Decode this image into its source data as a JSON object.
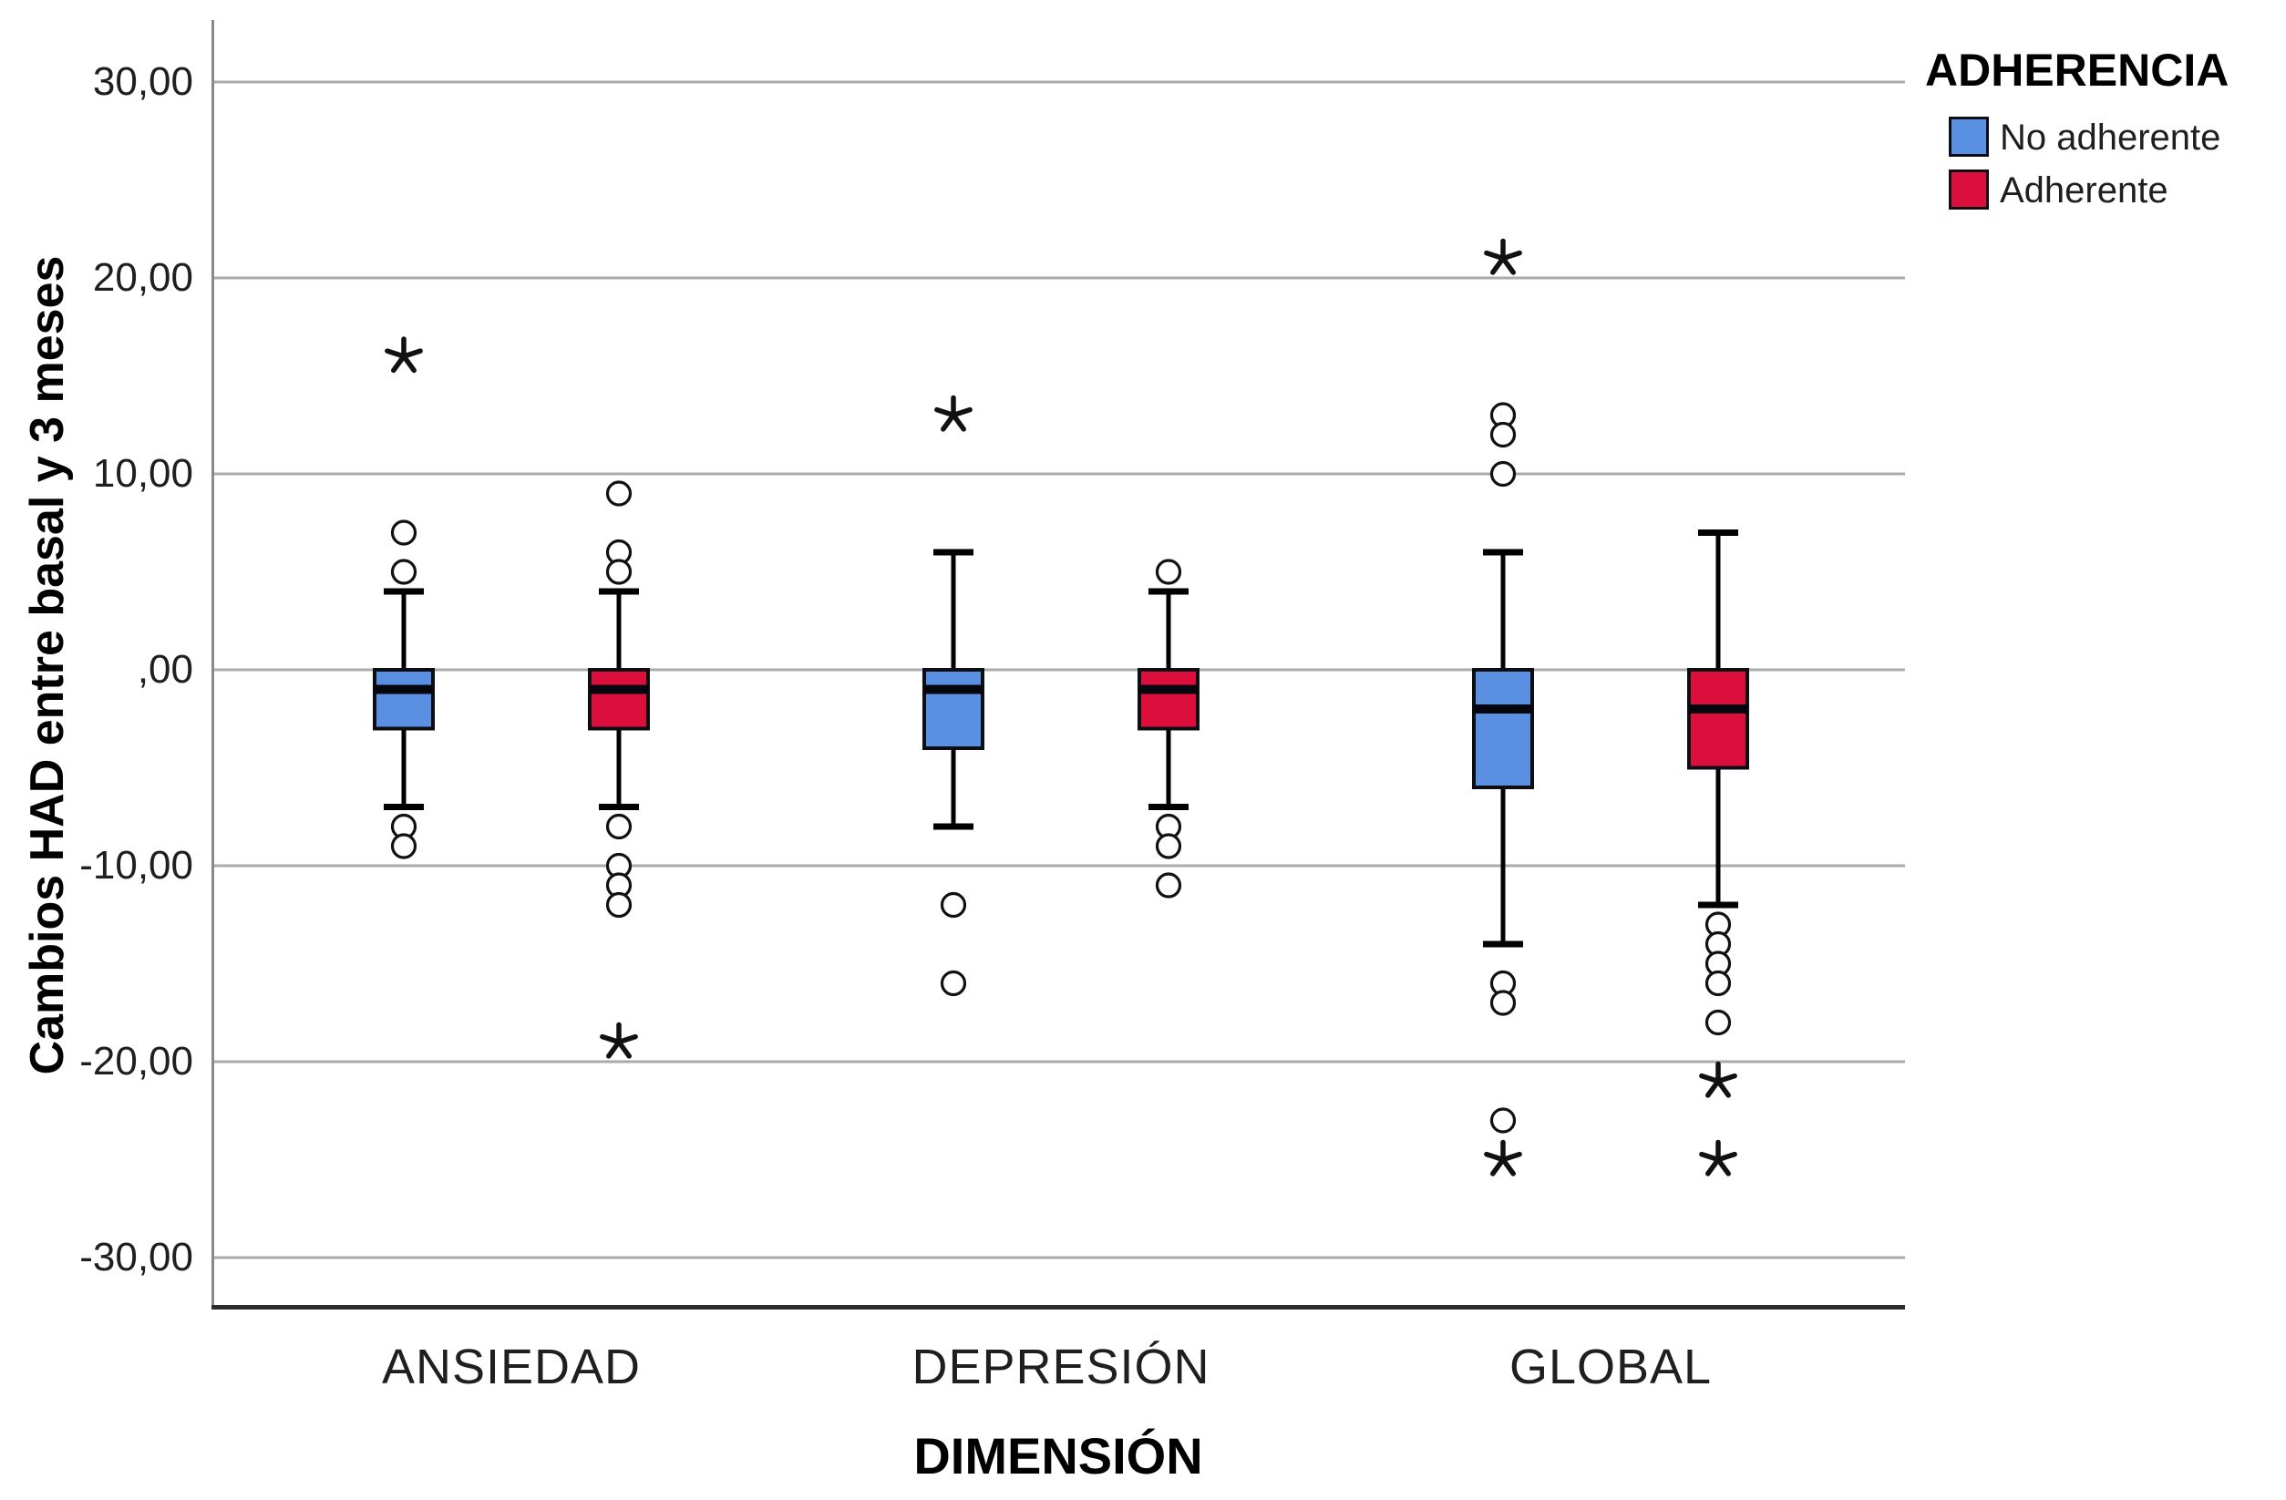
{
  "chart_data": {
    "type": "boxplot",
    "title": "",
    "ylabel": "Cambios HAD entre basal y 3 meses",
    "xlabel": "DIMENSIÓN",
    "ylim": [
      -33,
      33
    ],
    "grid": true,
    "ytick_values": [
      30,
      20,
      10,
      0,
      -10,
      -20,
      -30
    ],
    "ytick_labels": [
      "30,00",
      "20,00",
      "10,00",
      ",00",
      "-10,00",
      "-20,00",
      "-30,00"
    ],
    "categories": [
      "ANSIEDAD",
      "DEPRESIÓN",
      "GLOBAL"
    ],
    "legend": {
      "title": "ADHERENCIA",
      "position": "top-right",
      "items": [
        {
          "label": "No adherente",
          "color": "#5a90e2"
        },
        {
          "label": "Adherente",
          "color": "#dc0e3c"
        }
      ]
    },
    "marker_semantics": {
      "circle": "outlier",
      "star": "extreme-outlier"
    },
    "series": [
      {
        "name": "No adherente",
        "color": "#5a90e2",
        "boxes": [
          {
            "category": "ANSIEDAD",
            "whisker_low": -7,
            "q1": -3,
            "median": -1,
            "q3": 0,
            "whisker_high": 4,
            "outliers_circle": [
              7,
              5,
              -8,
              -9
            ],
            "outliers_star": [
              16
            ]
          },
          {
            "category": "DEPRESIÓN",
            "whisker_low": -8,
            "q1": -4,
            "median": -1,
            "q3": 0,
            "whisker_high": 6,
            "outliers_circle": [
              -12,
              -16
            ],
            "outliers_star": [
              13
            ]
          },
          {
            "category": "GLOBAL",
            "whisker_low": -14,
            "q1": -6,
            "median": -2,
            "q3": 0,
            "whisker_high": 6,
            "outliers_circle": [
              13,
              12,
              10,
              -16,
              -17,
              -23
            ],
            "outliers_star": [
              21,
              -25
            ]
          }
        ]
      },
      {
        "name": "Adherente",
        "color": "#dc0e3c",
        "boxes": [
          {
            "category": "ANSIEDAD",
            "whisker_low": -7,
            "q1": -3,
            "median": -1,
            "q3": 0,
            "whisker_high": 4,
            "outliers_circle": [
              9,
              6,
              5,
              -8,
              -10,
              -11,
              -12
            ],
            "outliers_star": [
              -19
            ]
          },
          {
            "category": "DEPRESIÓN",
            "whisker_low": -7,
            "q1": -3,
            "median": -1,
            "q3": 0,
            "whisker_high": 4,
            "outliers_circle": [
              5,
              -8,
              -9,
              -11
            ],
            "outliers_star": []
          },
          {
            "category": "GLOBAL",
            "whisker_low": -12,
            "q1": -5,
            "median": -2,
            "q3": 0,
            "whisker_high": 7,
            "outliers_circle": [
              -13,
              -14,
              -15,
              -16,
              -18
            ],
            "outliers_star": [
              -21,
              -25
            ]
          }
        ]
      }
    ],
    "style_colors": {
      "gridline": "#ababab",
      "axis_left": "#898989",
      "axis_bottom": "#2b2b2b",
      "box_border": "#0d0d14",
      "median_line": "#06060f",
      "marker_stroke": "#111111"
    }
  }
}
